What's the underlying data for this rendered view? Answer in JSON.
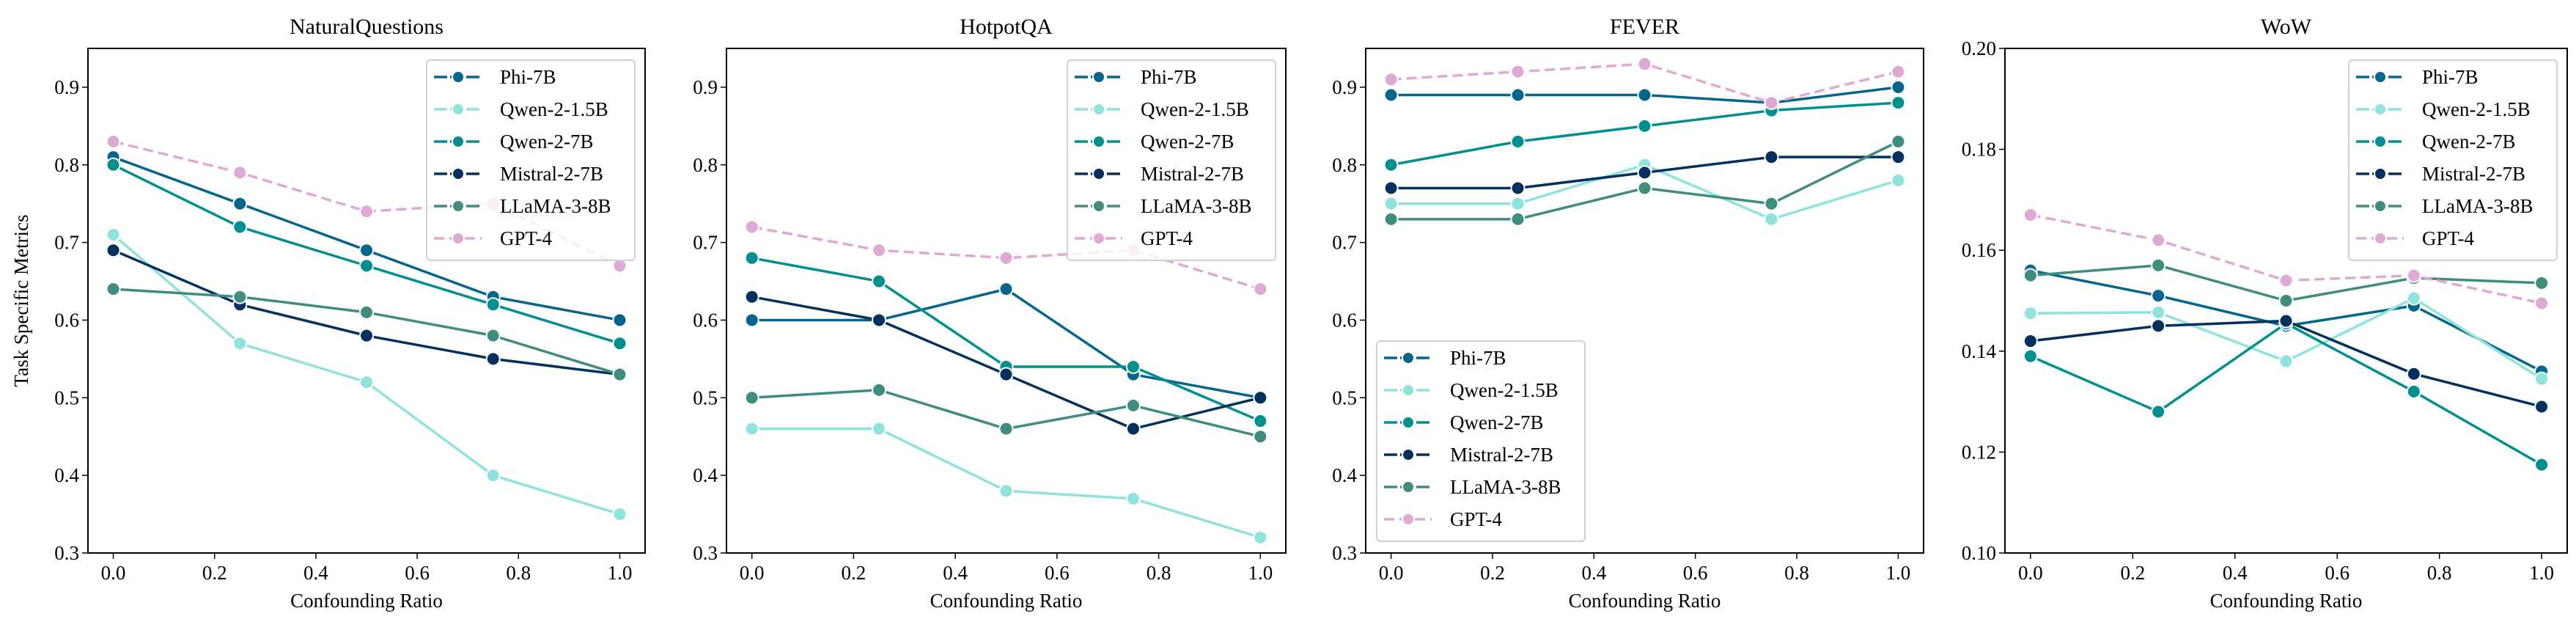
{
  "chart_data": [
    {
      "type": "line",
      "title": "NaturalQuestions",
      "xlabel": "Confounding Ratio",
      "ylabel": "Task Specific Metrics",
      "xlim": [
        -0.05,
        1.05
      ],
      "ylim": [
        0.3,
        0.95
      ],
      "xticks": [
        "0.0",
        "0.2",
        "0.4",
        "0.6",
        "0.8",
        "1.0"
      ],
      "yticks": [
        "0.3",
        "0.4",
        "0.5",
        "0.6",
        "0.7",
        "0.8",
        "0.9"
      ],
      "legend": "top-right",
      "grid": false,
      "x": [
        0,
        0.25,
        0.5,
        0.75,
        1.0
      ],
      "series": [
        {
          "name": "Phi-7B",
          "values": [
            0.81,
            0.75,
            0.69,
            0.63,
            0.6
          ]
        },
        {
          "name": "Qwen-2-1.5B",
          "values": [
            0.71,
            0.57,
            0.52,
            0.4,
            0.35
          ]
        },
        {
          "name": "Qwen-2-7B",
          "values": [
            0.8,
            0.72,
            0.67,
            0.62,
            0.57
          ]
        },
        {
          "name": "Mistral-2-7B",
          "values": [
            0.69,
            0.62,
            0.58,
            0.55,
            0.53
          ]
        },
        {
          "name": "LLaMA-3-8B",
          "values": [
            0.64,
            0.63,
            0.61,
            0.58,
            0.53
          ]
        },
        {
          "name": "GPT-4",
          "values": [
            0.83,
            0.79,
            0.74,
            0.75,
            0.67
          ]
        }
      ]
    },
    {
      "type": "line",
      "title": "HotpotQA",
      "xlabel": "Confounding Ratio",
      "ylabel": "",
      "xlim": [
        -0.05,
        1.05
      ],
      "ylim": [
        0.3,
        0.95
      ],
      "xticks": [
        "0.0",
        "0.2",
        "0.4",
        "0.6",
        "0.8",
        "1.0"
      ],
      "yticks": [
        "0.3",
        "0.4",
        "0.5",
        "0.6",
        "0.7",
        "0.8",
        "0.9"
      ],
      "legend": "top-right",
      "grid": false,
      "x": [
        0,
        0.25,
        0.5,
        0.75,
        1.0
      ],
      "series": [
        {
          "name": "Phi-7B",
          "values": [
            0.6,
            0.6,
            0.64,
            0.53,
            0.5
          ]
        },
        {
          "name": "Qwen-2-1.5B",
          "values": [
            0.46,
            0.46,
            0.38,
            0.37,
            0.32
          ]
        },
        {
          "name": "Qwen-2-7B",
          "values": [
            0.68,
            0.65,
            0.54,
            0.54,
            0.47
          ]
        },
        {
          "name": "Mistral-2-7B",
          "values": [
            0.63,
            0.6,
            0.53,
            0.46,
            0.5
          ]
        },
        {
          "name": "LLaMA-3-8B",
          "values": [
            0.5,
            0.51,
            0.46,
            0.49,
            0.45
          ]
        },
        {
          "name": "GPT-4",
          "values": [
            0.72,
            0.69,
            0.68,
            0.69,
            0.64
          ]
        }
      ]
    },
    {
      "type": "line",
      "title": "FEVER",
      "xlabel": "Confounding Ratio",
      "ylabel": "",
      "xlim": [
        -0.05,
        1.05
      ],
      "ylim": [
        0.3,
        0.95
      ],
      "xticks": [
        "0.0",
        "0.2",
        "0.4",
        "0.6",
        "0.8",
        "1.0"
      ],
      "yticks": [
        "0.3",
        "0.4",
        "0.5",
        "0.6",
        "0.7",
        "0.8",
        "0.9"
      ],
      "legend": "bottom-left",
      "grid": false,
      "x": [
        0,
        0.25,
        0.5,
        0.75,
        1.0
      ],
      "series": [
        {
          "name": "Phi-7B",
          "values": [
            0.89,
            0.89,
            0.89,
            0.88,
            0.9
          ]
        },
        {
          "name": "Qwen-2-1.5B",
          "values": [
            0.75,
            0.75,
            0.8,
            0.73,
            0.78
          ]
        },
        {
          "name": "Qwen-2-7B",
          "values": [
            0.8,
            0.83,
            0.85,
            0.87,
            0.88
          ]
        },
        {
          "name": "Mistral-2-7B",
          "values": [
            0.77,
            0.77,
            0.79,
            0.81,
            0.81
          ]
        },
        {
          "name": "LLaMA-3-8B",
          "values": [
            0.73,
            0.73,
            0.77,
            0.75,
            0.83
          ]
        },
        {
          "name": "GPT-4",
          "values": [
            0.91,
            0.92,
            0.93,
            0.88,
            0.92
          ]
        }
      ]
    },
    {
      "type": "line",
      "title": "WoW",
      "xlabel": "Confounding Ratio",
      "ylabel": "",
      "xlim": [
        -0.05,
        1.05
      ],
      "ylim": [
        0.1,
        0.2
      ],
      "xticks": [
        "0.0",
        "0.2",
        "0.4",
        "0.6",
        "0.8",
        "1.0"
      ],
      "yticks": [
        "0.10",
        "0.12",
        "0.14",
        "0.16",
        "0.18",
        "0.20"
      ],
      "legend": "top-right",
      "grid": false,
      "x": [
        0,
        0.25,
        0.5,
        0.75,
        1.0
      ],
      "series": [
        {
          "name": "Phi-7B",
          "values": [
            0.156,
            0.151,
            0.145,
            0.149,
            0.136
          ]
        },
        {
          "name": "Qwen-2-1.5B",
          "values": [
            0.1475,
            0.1477,
            0.138,
            0.1505,
            0.1345
          ]
        },
        {
          "name": "Qwen-2-7B",
          "values": [
            0.139,
            0.128,
            0.1455,
            0.132,
            0.1175
          ]
        },
        {
          "name": "Mistral-2-7B",
          "values": [
            0.142,
            0.145,
            0.146,
            0.1355,
            0.129
          ]
        },
        {
          "name": "LLaMA-3-8B",
          "values": [
            0.155,
            0.157,
            0.15,
            0.1545,
            0.1535
          ]
        },
        {
          "name": "GPT-4",
          "values": [
            0.167,
            0.162,
            0.154,
            0.155,
            0.1495
          ]
        }
      ]
    }
  ],
  "series_styles": {
    "Phi-7B": {
      "color": "#05668d",
      "dashed": false
    },
    "Qwen-2-1.5B": {
      "color": "#8ee3dc",
      "dashed": false
    },
    "Qwen-2-7B": {
      "color": "#028f8f",
      "dashed": false
    },
    "Mistral-2-7B": {
      "color": "#03305f",
      "dashed": false
    },
    "LLaMA-3-8B": {
      "color": "#3f8d7e",
      "dashed": false
    },
    "GPT-4": {
      "color": "#e0a9d5",
      "dashed": true
    }
  }
}
